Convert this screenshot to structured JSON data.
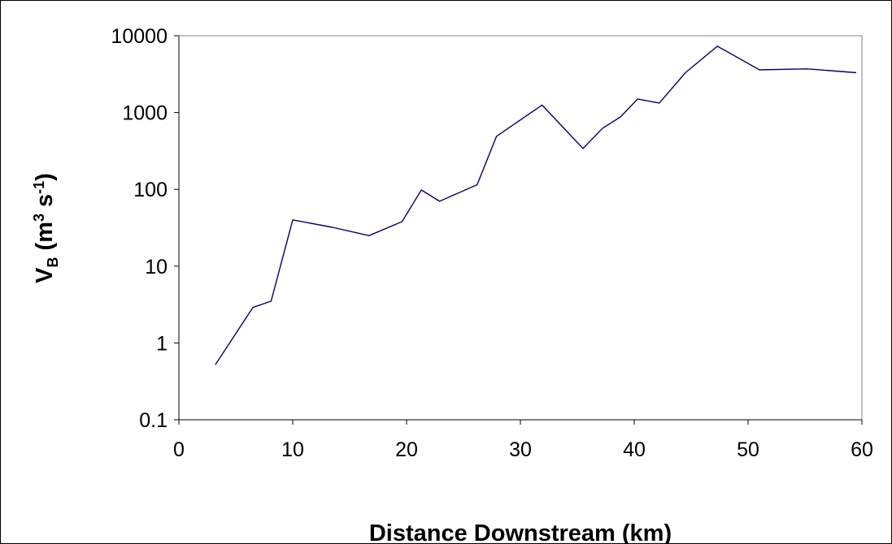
{
  "chart_data": {
    "type": "line",
    "title": "",
    "xlabel": "Distance Downstream (km)",
    "ylabel": {
      "main": "V",
      "subscript": "B",
      "units_open": " (m",
      "units_sup1": "3",
      "units_mid": " s",
      "units_sup2": "-1",
      "units_close": ")"
    },
    "xlim": [
      0,
      60
    ],
    "ylim": [
      0.1,
      10000
    ],
    "yscale": "log",
    "grid": false,
    "legend": "none",
    "x_ticks": [
      "0",
      "10",
      "20",
      "30",
      "40",
      "50",
      "60"
    ],
    "y_ticks": [
      "0.1",
      "1",
      "10",
      "100",
      "1000",
      "10000"
    ],
    "series": [
      {
        "color": "#000080",
        "x": [
          3.2,
          6.5,
          8.1,
          10.0,
          13.5,
          16.7,
          19.6,
          21.3,
          22.9,
          26.2,
          27.9,
          31.9,
          35.5,
          37.2,
          38.8,
          40.3,
          42.2,
          44.5,
          47.3,
          51.0,
          55.2,
          59.5
        ],
        "y": [
          0.52,
          2.9,
          3.5,
          40,
          32,
          25,
          38,
          98,
          70,
          115,
          490,
          1250,
          340,
          620,
          880,
          1500,
          1330,
          3300,
          7300,
          3600,
          3700,
          3300
        ]
      }
    ]
  }
}
